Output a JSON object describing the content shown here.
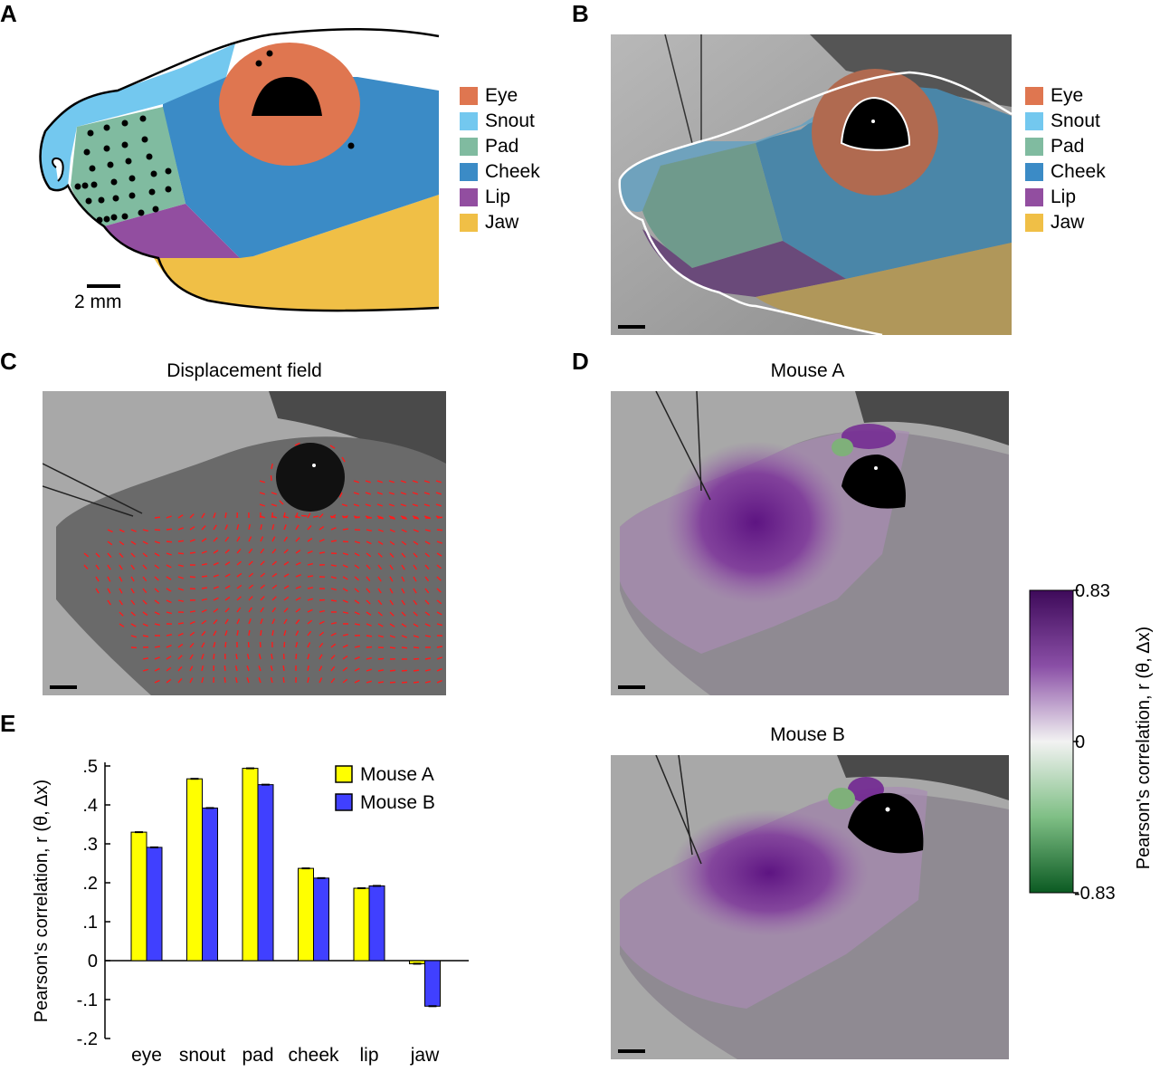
{
  "panels": {
    "a": {
      "letter": "A",
      "scale_label": "2 mm"
    },
    "b": {
      "letter": "B"
    },
    "c": {
      "letter": "C",
      "title": "Displacement field"
    },
    "d": {
      "letter": "D",
      "title_top": "Mouse A",
      "title_bottom": "Mouse B"
    },
    "e": {
      "letter": "E"
    }
  },
  "region_legend": [
    {
      "label": "Eye",
      "color": "#df7650"
    },
    {
      "label": "Snout",
      "color": "#73c8ef"
    },
    {
      "label": "Pad",
      "color": "#80bba0"
    },
    {
      "label": "Cheek",
      "color": "#3b8bc6"
    },
    {
      "label": "Lip",
      "color": "#924ea0"
    },
    {
      "label": "Jaw",
      "color": "#f0bf46"
    }
  ],
  "colorbar": {
    "max_label": "0.83",
    "mid_label": "0",
    "min_label": "-0.83",
    "axis_label": "Pearson's correlation, r (θ, Δx)",
    "max_color": "#3e0a5a",
    "min_color": "#0b5a22"
  },
  "chart_data": {
    "type": "bar",
    "categories": [
      "eye",
      "snout",
      "pad",
      "cheek",
      "lip",
      "jaw"
    ],
    "series": [
      {
        "name": "Mouse A",
        "color": "#ffff00",
        "values": [
          0.33,
          0.467,
          0.494,
          0.237,
          0.186,
          -0.008
        ]
      },
      {
        "name": "Mouse B",
        "color": "#4040ff",
        "values": [
          0.291,
          0.392,
          0.452,
          0.212,
          0.192,
          -0.117
        ]
      }
    ],
    "ylabel": "Pearson's correlation, r (θ, Δx)",
    "ylim": [
      -0.2,
      0.5
    ],
    "yticks": [
      {
        "value": 0.5,
        "label": ".5"
      },
      {
        "value": 0.4,
        "label": ".4"
      },
      {
        "value": 0.3,
        "label": ".3"
      },
      {
        "value": 0.2,
        "label": ".2"
      },
      {
        "value": 0.1,
        "label": ".1"
      },
      {
        "value": 0,
        "label": "0"
      },
      {
        "value": -0.1,
        "label": "-.1"
      },
      {
        "value": -0.2,
        "label": "-.2"
      }
    ],
    "legend_position": "top-right"
  }
}
